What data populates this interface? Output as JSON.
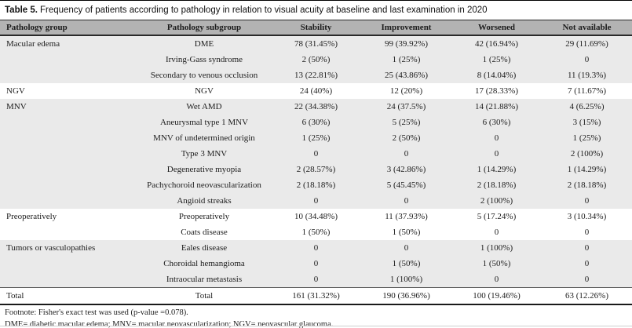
{
  "title": {
    "label": "Table 5.",
    "text": "Frequency of patients according to pathology in relation to visual acuity at baseline and last examination in 2020"
  },
  "colors": {
    "header_bg": "#b3b3b3",
    "shaded_row_bg": "#eaeaea",
    "text": "#1c1c1c"
  },
  "table": {
    "columns": [
      "Pathology group",
      "Pathology subgroup",
      "Stability",
      "Improvement",
      "Worsened",
      "Not available"
    ],
    "groups": [
      {
        "name": "Macular edema",
        "shaded": true,
        "rows": [
          {
            "subgroup": "DME",
            "values": [
              "78 (31.45%)",
              "99 (39.92%)",
              "42 (16.94%)",
              "29 (11.69%)"
            ]
          },
          {
            "subgroup": "Irving-Gass syndrome",
            "values": [
              "2 (50%)",
              "1 (25%)",
              "1 (25%)",
              "0"
            ]
          },
          {
            "subgroup": "Secondary to venous occlusion",
            "values": [
              "13 (22.81%)",
              "25 (43.86%)",
              "8 (14.04%)",
              "11 (19.3%)"
            ]
          }
        ]
      },
      {
        "name": "NGV",
        "shaded": false,
        "rows": [
          {
            "subgroup": "NGV",
            "values": [
              "24 (40%)",
              "12 (20%)",
              "17 (28.33%)",
              "7 (11.67%)"
            ]
          }
        ]
      },
      {
        "name": "MNV",
        "shaded": true,
        "rows": [
          {
            "subgroup": "Wet AMD",
            "values": [
              "22 (34.38%)",
              "24 (37.5%)",
              "14 (21.88%)",
              "4 (6.25%)"
            ]
          },
          {
            "subgroup": "Aneurysmal type 1 MNV",
            "values": [
              "6 (30%)",
              "5 (25%)",
              "6 (30%)",
              "3 (15%)"
            ]
          },
          {
            "subgroup": "MNV of undetermined origin",
            "values": [
              "1 (25%)",
              "2 (50%)",
              "0",
              "1 (25%)"
            ]
          },
          {
            "subgroup": "Type 3 MNV",
            "values": [
              "0",
              "0",
              "0",
              "2 (100%)"
            ]
          },
          {
            "subgroup": "Degenerative myopia",
            "values": [
              "2 (28.57%)",
              "3 (42.86%)",
              "1 (14.29%)",
              "1 (14.29%)"
            ]
          },
          {
            "subgroup": "Pachychoroid neovascularization",
            "values": [
              "2 (18.18%)",
              "5 (45.45%)",
              "2 (18.18%)",
              "2 (18.18%)"
            ]
          },
          {
            "subgroup": "Angioid streaks",
            "values": [
              "0",
              "0",
              "2 (100%)",
              "0"
            ]
          }
        ]
      },
      {
        "name": "Preoperatively",
        "shaded": false,
        "rows": [
          {
            "subgroup": "Preoperatively",
            "values": [
              "10 (34.48%)",
              "11 (37.93%)",
              "5 (17.24%)",
              "3 (10.34%)"
            ]
          },
          {
            "subgroup": "Coats disease",
            "values": [
              "1 (50%)",
              "1 (50%)",
              "0",
              "0"
            ]
          }
        ]
      },
      {
        "name": "Tumors or vasculopathies",
        "shaded": true,
        "rows": [
          {
            "subgroup": "Eales disease",
            "values": [
              "0",
              "0",
              "1 (100%)",
              "0"
            ]
          },
          {
            "subgroup": "Choroidal hemangioma",
            "values": [
              "0",
              "1 (50%)",
              "1 (50%)",
              "0"
            ]
          },
          {
            "subgroup": "Intraocular metastasis",
            "values": [
              "0",
              "1 (100%)",
              "0",
              "0"
            ]
          }
        ]
      }
    ],
    "total": {
      "group": "Total",
      "subgroup": "Total",
      "values": [
        "161 (31.32%)",
        "190 (36.96%)",
        "100 (19.46%)",
        "63 (12.26%)"
      ]
    }
  },
  "footnotes": [
    "Footnote: Fisher's exact test was used (p-value =0.078).",
    "DME= diabetic macular edema; MNV= macular neovascularization; NGV= neovascular glaucoma."
  ]
}
